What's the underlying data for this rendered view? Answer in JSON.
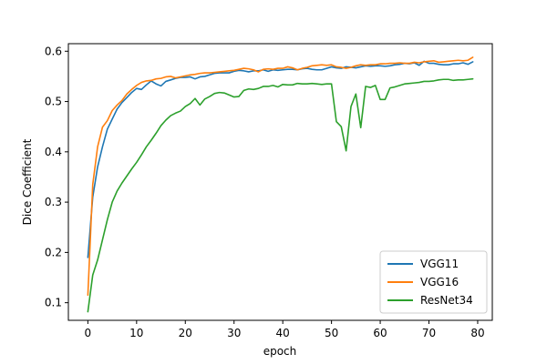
{
  "chart_data": {
    "type": "line",
    "xlabel": "epoch",
    "ylabel": "Dice Coefficient",
    "xlim": [
      -4,
      83
    ],
    "ylim": [
      0.065,
      0.615
    ],
    "xticks": [
      0,
      10,
      20,
      30,
      40,
      50,
      60,
      70,
      80
    ],
    "yticks": [
      0.1,
      0.2,
      0.3,
      0.4,
      0.5,
      0.6
    ],
    "grid": false,
    "legend_position": "bottom-right",
    "x": [
      0,
      1,
      2,
      3,
      4,
      5,
      6,
      7,
      8,
      9,
      10,
      11,
      12,
      13,
      14,
      15,
      16,
      17,
      18,
      19,
      20,
      21,
      22,
      23,
      24,
      25,
      26,
      27,
      28,
      29,
      30,
      31,
      32,
      33,
      34,
      35,
      36,
      37,
      38,
      39,
      40,
      41,
      42,
      43,
      44,
      45,
      46,
      47,
      48,
      49,
      50,
      51,
      52,
      53,
      54,
      55,
      56,
      57,
      58,
      59,
      60,
      61,
      62,
      63,
      64,
      65,
      66,
      67,
      68,
      69,
      70,
      71,
      72,
      73,
      74,
      75,
      76,
      77,
      78,
      79
    ],
    "series": [
      {
        "name": "VGG11",
        "color": "#1f77b4",
        "values": [
          0.19,
          0.31,
          0.37,
          0.41,
          0.445,
          0.465,
          0.485,
          0.498,
          0.508,
          0.518,
          0.526,
          0.524,
          0.533,
          0.541,
          0.535,
          0.531,
          0.54,
          0.543,
          0.546,
          0.548,
          0.548,
          0.549,
          0.545,
          0.549,
          0.55,
          0.553,
          0.556,
          0.557,
          0.557,
          0.557,
          0.56,
          0.562,
          0.561,
          0.559,
          0.561,
          0.561,
          0.563,
          0.56,
          0.563,
          0.562,
          0.563,
          0.564,
          0.564,
          0.563,
          0.565,
          0.566,
          0.564,
          0.563,
          0.563,
          0.566,
          0.569,
          0.567,
          0.566,
          0.569,
          0.568,
          0.567,
          0.569,
          0.571,
          0.57,
          0.571,
          0.571,
          0.57,
          0.571,
          0.573,
          0.574,
          0.576,
          0.575,
          0.577,
          0.572,
          0.58,
          0.576,
          0.576,
          0.574,
          0.573,
          0.573,
          0.575,
          0.575,
          0.577,
          0.574,
          0.579
        ]
      },
      {
        "name": "VGG16",
        "color": "#ff7f0e",
        "values": [
          0.115,
          0.335,
          0.41,
          0.449,
          0.462,
          0.482,
          0.493,
          0.502,
          0.515,
          0.524,
          0.532,
          0.538,
          0.541,
          0.542,
          0.545,
          0.546,
          0.549,
          0.55,
          0.547,
          0.549,
          0.551,
          0.553,
          0.554,
          0.556,
          0.557,
          0.557,
          0.558,
          0.559,
          0.56,
          0.561,
          0.562,
          0.564,
          0.566,
          0.565,
          0.563,
          0.559,
          0.564,
          0.565,
          0.564,
          0.566,
          0.566,
          0.569,
          0.567,
          0.563,
          0.566,
          0.568,
          0.571,
          0.572,
          0.573,
          0.572,
          0.573,
          0.569,
          0.568,
          0.566,
          0.568,
          0.571,
          0.573,
          0.572,
          0.573,
          0.573,
          0.575,
          0.575,
          0.576,
          0.576,
          0.577,
          0.576,
          0.576,
          0.578,
          0.577,
          0.579,
          0.58,
          0.581,
          0.578,
          0.579,
          0.58,
          0.581,
          0.582,
          0.581,
          0.582,
          0.588
        ]
      },
      {
        "name": "ResNet34",
        "color": "#2ca02c",
        "values": [
          0.082,
          0.155,
          0.185,
          0.225,
          0.265,
          0.3,
          0.322,
          0.338,
          0.352,
          0.366,
          0.379,
          0.394,
          0.41,
          0.423,
          0.437,
          0.452,
          0.463,
          0.472,
          0.477,
          0.481,
          0.49,
          0.496,
          0.506,
          0.493,
          0.505,
          0.51,
          0.516,
          0.518,
          0.517,
          0.513,
          0.509,
          0.51,
          0.522,
          0.525,
          0.524,
          0.526,
          0.53,
          0.53,
          0.532,
          0.529,
          0.534,
          0.533,
          0.533,
          0.536,
          0.535,
          0.535,
          0.536,
          0.535,
          0.534,
          0.535,
          0.535,
          0.46,
          0.45,
          0.402,
          0.49,
          0.515,
          0.448,
          0.53,
          0.528,
          0.532,
          0.504,
          0.504,
          0.527,
          0.529,
          0.532,
          0.535,
          0.536,
          0.537,
          0.538,
          0.54,
          0.54,
          0.541,
          0.543,
          0.544,
          0.544,
          0.542,
          0.543,
          0.543,
          0.544,
          0.545
        ]
      }
    ]
  }
}
